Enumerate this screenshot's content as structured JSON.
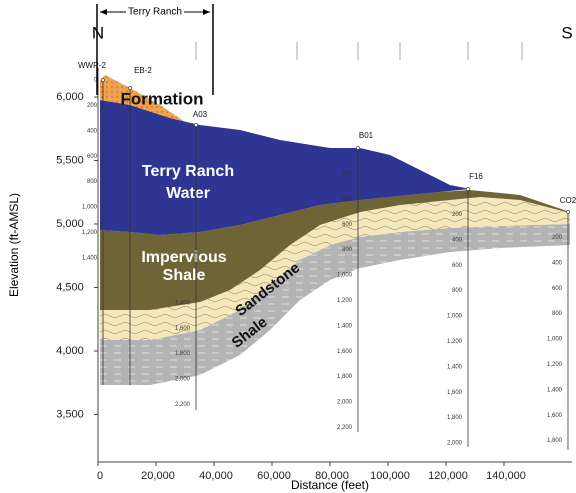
{
  "header": {
    "north": "N",
    "south": "S",
    "span_label": "Terry Ranch"
  },
  "axes": {
    "y_title": "Elevation (ft-AMSL)",
    "x_title": "Distance (feet)",
    "yticks": [
      "6,000",
      "5,500",
      "5,000",
      "4,500",
      "4,000",
      "3,500"
    ],
    "xticks": [
      "0",
      "20,000",
      "40,000",
      "60,000",
      "80,000",
      "100,000",
      "120,000",
      "140,000"
    ]
  },
  "layers": {
    "formation": "Formation",
    "water": [
      "Terry Ranch",
      "Water"
    ],
    "impervious": [
      "Impervious",
      "Shale"
    ],
    "sandstone": "Sandstone",
    "shale": "Shale"
  },
  "wells": [
    {
      "name": "WWR-2",
      "depths": [
        "0",
        "200",
        "400",
        "600",
        "800",
        "1,000",
        "1,200",
        "1,400"
      ]
    },
    {
      "name": "EB-2"
    },
    {
      "name": "A03",
      "depths": [
        "1,400",
        "1,600",
        "1,800",
        "2,000",
        "2,200"
      ]
    },
    {
      "name": "B01",
      "depths": [
        "200",
        "400",
        "600",
        "800",
        "1,000",
        "1,200",
        "1,400",
        "1,600",
        "1,800",
        "2,000",
        "2,200"
      ]
    },
    {
      "name": "F16",
      "depths": [
        "200",
        "400",
        "600",
        "800",
        "1,000",
        "1,200",
        "1,400",
        "1,600",
        "1,800",
        "2,000"
      ]
    },
    {
      "name": "CO2",
      "depths": [
        "200",
        "400",
        "600",
        "800",
        "1,000",
        "1,200",
        "1,400",
        "1,600",
        "1,800"
      ]
    }
  ]
}
